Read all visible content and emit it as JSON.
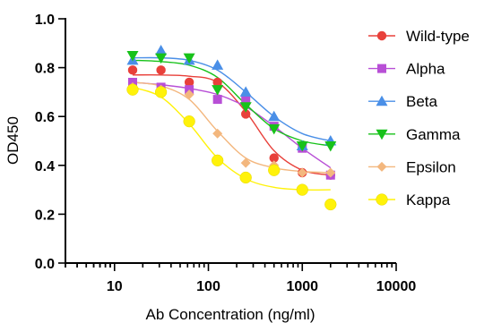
{
  "chart_data": {
    "type": "scatter",
    "xlabel": "Ab Concentration (ng/ml)",
    "ylabel": "OD450",
    "xscale": "log",
    "xlim": [
      3,
      10000
    ],
    "ylim": [
      0,
      1.0
    ],
    "x_ticks": [
      10,
      100,
      1000,
      10000
    ],
    "x_tick_labels": [
      "10",
      "100",
      "1000",
      "10000"
    ],
    "y_ticks": [
      0,
      0.2,
      0.4,
      0.6,
      0.8,
      1.0
    ],
    "y_tick_labels": [
      "0.0",
      "0.2",
      "0.4",
      "0.6",
      "0.8",
      "1.0"
    ],
    "legend_position": "right",
    "grid": false,
    "x": [
      15.6,
      31.25,
      62.5,
      125,
      250,
      500,
      1000,
      2000
    ],
    "series": [
      {
        "name": "Wild-type",
        "color": "#e8403a",
        "marker": "circle",
        "values": [
          0.79,
          0.79,
          0.74,
          0.74,
          0.61,
          0.43,
          0.37,
          0.36
        ],
        "fit": [
          0.77,
          0.77,
          0.765,
          0.74,
          0.62,
          0.46,
          0.38,
          0.36
        ]
      },
      {
        "name": "Alpha",
        "color": "#b84fd6",
        "marker": "square",
        "values": [
          0.74,
          0.72,
          0.71,
          0.67,
          0.67,
          0.56,
          0.47,
          0.36
        ],
        "fit": [
          0.74,
          0.73,
          0.715,
          0.69,
          0.64,
          0.56,
          0.47,
          0.39
        ]
      },
      {
        "name": "Beta",
        "color": "#4a8fe7",
        "marker": "triangle-up",
        "values": [
          0.83,
          0.87,
          0.83,
          0.81,
          0.7,
          0.6,
          0.48,
          0.5
        ],
        "fit": [
          0.84,
          0.84,
          0.83,
          0.79,
          0.7,
          0.6,
          0.53,
          0.5
        ]
      },
      {
        "name": "Gamma",
        "color": "#17c21a",
        "marker": "triangle-down",
        "values": [
          0.85,
          0.84,
          0.84,
          0.71,
          0.64,
          0.55,
          0.48,
          0.48
        ],
        "fit": [
          0.83,
          0.825,
          0.81,
          0.76,
          0.65,
          0.55,
          0.5,
          0.48
        ]
      },
      {
        "name": "Epsilon",
        "color": "#f3b77e",
        "marker": "diamond",
        "values": [
          0.72,
          0.71,
          0.69,
          0.53,
          0.41,
          0.4,
          0.37,
          0.37
        ],
        "fit": [
          0.74,
          0.725,
          0.67,
          0.54,
          0.43,
          0.39,
          0.375,
          0.37
        ]
      },
      {
        "name": "Kappa",
        "color": "#fff20a",
        "marker": "circle-large",
        "values": [
          0.71,
          0.7,
          0.58,
          0.42,
          0.35,
          0.38,
          0.3,
          0.24
        ],
        "fit": [
          0.72,
          0.68,
          0.57,
          0.43,
          0.345,
          0.31,
          0.3,
          0.3
        ]
      }
    ]
  }
}
